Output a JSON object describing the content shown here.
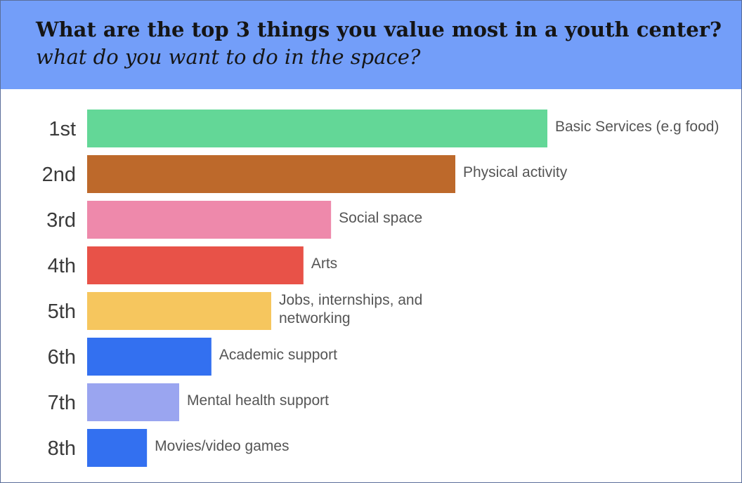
{
  "header": {
    "title": "What are the top 3 things you value most in a youth center?",
    "subtitle": "what do you want to do in the space?"
  },
  "colors": {
    "header_bg": "#739ef9",
    "rank_text": "#3a3a3a",
    "label_text": "#555555"
  },
  "chart_data": {
    "type": "bar",
    "orientation": "horizontal",
    "ranks": [
      "1st",
      "2nd",
      "3rd",
      "4th",
      "5th",
      "6th",
      "7th",
      "8th"
    ],
    "categories": [
      "Basic Services (e.g food)",
      "Physical activity",
      "Social space",
      "Arts",
      "Jobs, internships, and networking",
      "Academic support",
      "Mental health support",
      "Movies/video games"
    ],
    "category_lines": [
      [
        "Basic Services (e.g food)"
      ],
      [
        "Physical activity"
      ],
      [
        "Social space"
      ],
      [
        "Arts"
      ],
      [
        "Jobs, internships, and",
        "networking"
      ],
      [
        "Academic support"
      ],
      [
        "Mental health support"
      ],
      [
        "Movies/video games"
      ]
    ],
    "values": [
      100,
      80,
      53,
      47,
      40,
      27,
      20,
      13
    ],
    "colors": [
      "#63d797",
      "#bd692b",
      "#ee89ab",
      "#e85248",
      "#f6c65e",
      "#3370f0",
      "#9aa5f0",
      "#3370f0"
    ],
    "xlim": [
      0,
      100
    ],
    "grid": false,
    "legend": "none"
  }
}
